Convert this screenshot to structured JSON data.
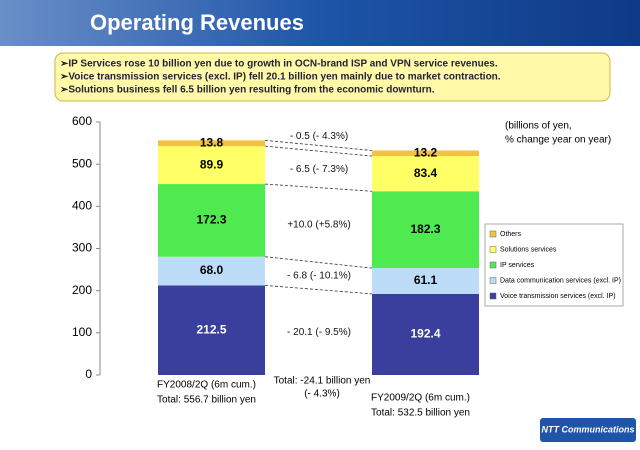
{
  "header": {
    "title": "Operating Revenues"
  },
  "bullets": [
    "➢IP Services rose 10 billion yen due to growth in OCN-brand ISP and VPN service revenues.",
    "➢Voice transmission services (excl. IP) fell 20.1 billion yen mainly due to market contraction.",
    "➢Solutions business fell 6.5 billion yen resulting from the economic downturn."
  ],
  "logo": "NTT Communications",
  "chart_data": {
    "type": "stacked-bar",
    "unit_label": [
      "(billions of yen,",
      "% change year on year)"
    ],
    "categories": [
      "FY2008/2Q (6m cum.)",
      "FY2009/2Q (6m cum.)"
    ],
    "totals": [
      "Total: 556.7 billion yen",
      "Total: 532.5 billion yen"
    ],
    "series": [
      {
        "name": "Voice transmission services (excl. IP)",
        "color": "#3a3f9e",
        "values": [
          212.5,
          192.4
        ],
        "value_labels": [
          "212.5",
          "192.4"
        ],
        "change": "- 20.1 (- 9.5%)"
      },
      {
        "name": "Data communication services (excl. IP)",
        "color": "#bcdcf8",
        "values": [
          68.0,
          61.1
        ],
        "value_labels": [
          "68.0",
          "61.1"
        ],
        "change": "- 6.8 (- 10.1%)"
      },
      {
        "name": "IP services",
        "color": "#4eea50",
        "values": [
          172.3,
          182.3
        ],
        "value_labels": [
          "172.3",
          "182.3"
        ],
        "change": "+10.0 (+5.8%)"
      },
      {
        "name": "Solutions services",
        "color": "#ffff66",
        "values": [
          89.9,
          83.4
        ],
        "value_labels": [
          "89.9",
          "83.4"
        ],
        "change": "- 6.5 (- 7.3%)"
      },
      {
        "name": "Others",
        "color": "#f2c13e",
        "values": [
          13.8,
          13.2
        ],
        "value_labels": [
          "13.8",
          "13.2"
        ],
        "change": "- 0.5 (- 4.3%)"
      }
    ],
    "total_change": [
      "Total: -24.1 billion yen",
      "(- 4.3%)"
    ],
    "ylim": [
      0,
      600
    ],
    "yticks": [
      0,
      100,
      200,
      300,
      400,
      500,
      600
    ]
  }
}
